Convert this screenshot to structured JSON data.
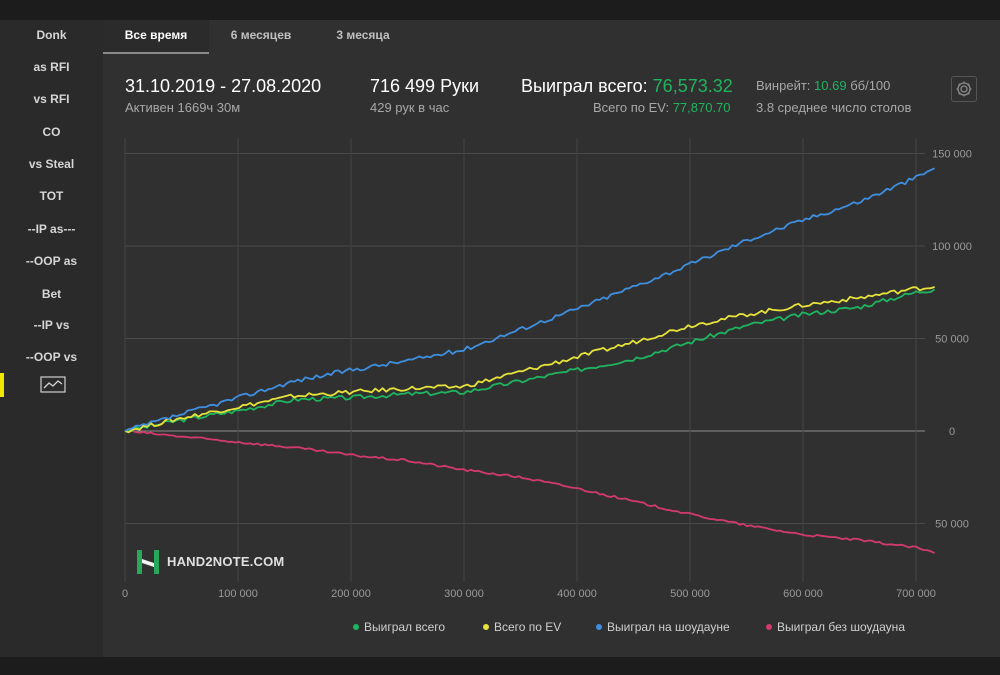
{
  "sidebar": {
    "items": [
      {
        "label": "Donk"
      },
      {
        "label": "as RFI"
      },
      {
        "label": "vs RFI"
      },
      {
        "label": "CO"
      },
      {
        "label": "vs Steal"
      },
      {
        "label": "TOT"
      },
      {
        "label": "--IP as---"
      },
      {
        "label": "--OOP as"
      },
      {
        "label": "Bet"
      },
      {
        "label": "--IP vs"
      },
      {
        "label": "--OOP vs"
      }
    ],
    "active_icon": "line-chart-icon"
  },
  "tabs": [
    {
      "label": "Все время",
      "active": true
    },
    {
      "label": "6 месяцев",
      "active": false
    },
    {
      "label": "3 месяца",
      "active": false
    }
  ],
  "header": {
    "date_range": "31.10.2019 - 27.08.2020",
    "active_time": "Активен 1669ч 30м",
    "hands": "716 499 Руки",
    "hands_per_hour": "429 рук в час",
    "won_total_label": "Выиграл всего:",
    "won_total_value": "76,573.32",
    "ev_total_label": "Всего по EV:",
    "ev_total_value": "77,870.70",
    "winrate_label": "Винрейт:",
    "winrate_value": "10.69",
    "winrate_unit": "бб/100",
    "avg_tables": "3.8 среднее число столов",
    "settings_icon": "gear-icon"
  },
  "logo": {
    "text": "HAND2NOTE.COM",
    "icon": "h2n-logo-icon"
  },
  "colors": {
    "green": "#1fb45e",
    "yellow": "#e6e23a",
    "blue": "#3f8fe0",
    "pink": "#d23a6e",
    "accent": "#f0e800"
  },
  "chart_data": {
    "type": "line",
    "x_tick_labels": [
      "0",
      "100 000",
      "200 000",
      "300 000",
      "400 000",
      "500 000",
      "600 000",
      "700 000"
    ],
    "x_ticks": [
      0,
      100000,
      200000,
      300000,
      400000,
      500000,
      600000,
      700000
    ],
    "y_tick_labels": [
      "150 000",
      "100 000",
      "50 000",
      "0",
      "50 000"
    ],
    "y_ticks": [
      150000,
      100000,
      50000,
      0,
      -50000
    ],
    "xlim": [
      0,
      716499
    ],
    "ylim": [
      -66000,
      160000
    ],
    "x": [
      0,
      50000,
      100000,
      150000,
      200000,
      250000,
      300000,
      350000,
      400000,
      450000,
      500000,
      550000,
      600000,
      650000,
      700000,
      716499
    ],
    "series": [
      {
        "name": "Выиграл всего",
        "color": "#1fb45e",
        "values": [
          0,
          6000,
          11000,
          17000,
          18000,
          20000,
          21000,
          27000,
          33000,
          39000,
          48000,
          57000,
          63000,
          67000,
          75000,
          76573
        ]
      },
      {
        "name": "Всего по EV",
        "color": "#e6e23a",
        "values": [
          0,
          7000,
          13000,
          19000,
          21000,
          23000,
          24000,
          32000,
          40000,
          48000,
          57000,
          63000,
          68000,
          72000,
          77000,
          77871
        ]
      },
      {
        "name": "Выиграл на шоудауне",
        "color": "#3f8fe0",
        "values": [
          0,
          9000,
          18000,
          27000,
          33000,
          38000,
          44000,
          55000,
          66000,
          78000,
          90000,
          103000,
          114000,
          124000,
          137000,
          142000
        ]
      },
      {
        "name": "Выиграл без шоудауна",
        "color": "#d23a6e",
        "values": [
          0,
          -3000,
          -6000,
          -9000,
          -13000,
          -16000,
          -21000,
          -25000,
          -31000,
          -38000,
          -45000,
          -51000,
          -56000,
          -59000,
          -63000,
          -66000
        ]
      }
    ],
    "grid": true,
    "legend_position": "bottom-right"
  }
}
